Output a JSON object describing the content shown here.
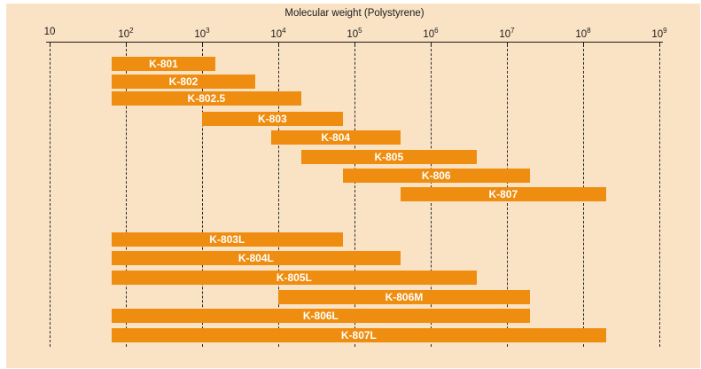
{
  "figure": {
    "title": "Molecular weight (Polystyrene)"
  },
  "axis": {
    "scale": "log10",
    "base": "10",
    "decade_exponents": [
      1,
      2,
      3,
      4,
      5,
      6,
      7,
      8,
      9
    ],
    "min_label": "10",
    "max_label": "10^9"
  },
  "chart_data": {
    "type": "bar",
    "subtype": "horizontal-range-bars-on-log-axis",
    "title": "Molecular weight (Polystyrene)",
    "xlabel": "Molecular weight (Polystyrene)",
    "x_scale": "log10",
    "xlim": [
      10,
      1000000000
    ],
    "grid": "vertical-dashed-per-decade",
    "legend": "none",
    "groups": [
      "standard-series",
      "L-series"
    ],
    "series": [
      {
        "name": "K-801",
        "group": "standard-series",
        "mw_min": 65,
        "mw_max": 1500
      },
      {
        "name": "K-802",
        "group": "standard-series",
        "mw_min": 65,
        "mw_max": 5000
      },
      {
        "name": "K-802.5",
        "group": "standard-series",
        "mw_min": 65,
        "mw_max": 20000
      },
      {
        "name": "K-803",
        "group": "standard-series",
        "mw_min": 1000,
        "mw_max": 70000
      },
      {
        "name": "K-804",
        "group": "standard-series",
        "mw_min": 8000,
        "mw_max": 400000
      },
      {
        "name": "K-805",
        "group": "standard-series",
        "mw_min": 20000,
        "mw_max": 4000000
      },
      {
        "name": "K-806",
        "group": "standard-series",
        "mw_min": 70000,
        "mw_max": 20000000
      },
      {
        "name": "K-807",
        "group": "standard-series",
        "mw_min": 400000,
        "mw_max": 200000000
      },
      {
        "name": "K-803L",
        "group": "L-series",
        "mw_min": 65,
        "mw_max": 70000
      },
      {
        "name": "K-804L",
        "group": "L-series",
        "mw_min": 65,
        "mw_max": 400000
      },
      {
        "name": "K-805L",
        "group": "L-series",
        "mw_min": 65,
        "mw_max": 4000000
      },
      {
        "name": "K-806M",
        "group": "L-series",
        "mw_min": 10000,
        "mw_max": 20000000
      },
      {
        "name": "K-806L",
        "group": "L-series",
        "mw_min": 65,
        "mw_max": 20000000
      },
      {
        "name": "K-807L",
        "group": "L-series",
        "mw_min": 65,
        "mw_max": 200000000
      }
    ]
  },
  "colors": {
    "bar": "#ee8d10",
    "bar_label": "#ffffff",
    "background": "#fae3c5",
    "page": "#ffffff",
    "axis": "#1a1a1a",
    "gridline": "#2b2b2b",
    "text": "#1a1a1a"
  }
}
